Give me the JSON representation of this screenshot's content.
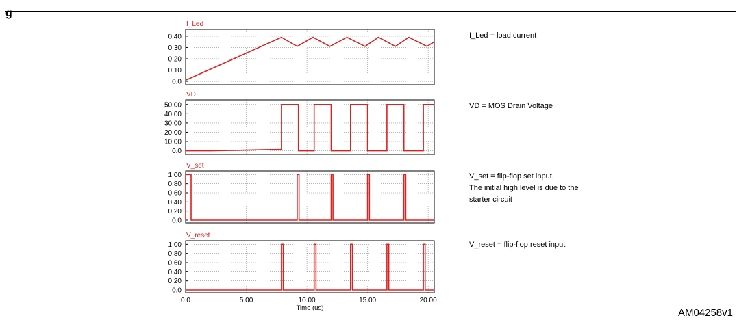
{
  "figure": {
    "corner_label": "g",
    "reference_code": "AM04258v1"
  },
  "notes": [
    {
      "lines": [
        "I_Led = load current"
      ]
    },
    {
      "lines": [
        "VD = MOS Drain Voltage"
      ]
    },
    {
      "lines": [
        "V_set = flip-flop set input,",
        "The initial high level is due to the",
        "starter circuit"
      ]
    },
    {
      "lines": [
        "V_reset = flip-flop reset input"
      ]
    }
  ],
  "colors": {
    "trace": "#dd2020",
    "label": "#dd2020",
    "axis": "#000000",
    "grid": "#888888"
  },
  "chart_data": [
    {
      "type": "line",
      "title": "I_Led",
      "x_tick_labels": [],
      "xlabel": "",
      "ylabel": "",
      "xlim": [
        0,
        20.5
      ],
      "ylim": [
        -0.03,
        0.46
      ],
      "y_ticks": [
        0.0,
        0.1,
        0.2,
        0.3,
        0.4
      ],
      "y_tick_labels": [
        "0.0",
        "0.10",
        "0.20",
        "0.30",
        "0.40"
      ],
      "x_grid": [
        5,
        10,
        15,
        20
      ],
      "grid": true,
      "series": [
        {
          "x": [
            0,
            7.9,
            9.2,
            10.5,
            11.9,
            13.3,
            14.8,
            15.9,
            17.3,
            18.4,
            19.9,
            20.5
          ],
          "y": [
            0.01,
            0.39,
            0.31,
            0.39,
            0.31,
            0.39,
            0.31,
            0.39,
            0.31,
            0.39,
            0.31,
            0.35
          ]
        }
      ]
    },
    {
      "type": "line",
      "title": "VD",
      "x_tick_labels": [],
      "xlabel": "",
      "ylabel": "",
      "xlim": [
        0,
        20.5
      ],
      "ylim": [
        -4,
        55
      ],
      "y_ticks": [
        0,
        10,
        20,
        30,
        40,
        50
      ],
      "y_tick_labels": [
        "0.0",
        "10.00",
        "20.00",
        "30.00",
        "40.00",
        "50.00"
      ],
      "x_grid": [
        5,
        10,
        15,
        20
      ],
      "grid": true,
      "series": [
        {
          "x": [
            0,
            2,
            4,
            7.9,
            7.9,
            9.3,
            9.3,
            10.6,
            10.6,
            12.0,
            12.0,
            13.6,
            13.6,
            15.0,
            15.0,
            16.6,
            16.6,
            18.0,
            18.0,
            19.6,
            19.6,
            20.5
          ],
          "y": [
            0,
            0,
            0.5,
            1.5,
            50,
            50,
            0,
            0,
            50,
            50,
            0,
            0,
            50,
            50,
            0,
            0,
            50,
            50,
            0,
            0,
            50,
            50
          ]
        }
      ]
    },
    {
      "type": "line",
      "title": "V_set",
      "x_tick_labels": [],
      "xlabel": "",
      "ylabel": "",
      "xlim": [
        0,
        20.5
      ],
      "ylim": [
        -0.06,
        1.08
      ],
      "y_ticks": [
        0.0,
        0.2,
        0.4,
        0.6,
        0.8,
        1.0
      ],
      "y_tick_labels": [
        "0.0",
        "0.20",
        "0.40",
        "0.60",
        "0.80",
        "1.00"
      ],
      "x_grid": [
        5,
        10,
        15,
        20
      ],
      "grid": true,
      "series": [
        {
          "x": [
            0,
            0,
            0.45,
            0.45,
            9.2,
            9.2,
            9.35,
            9.35,
            12.0,
            12.0,
            12.15,
            12.15,
            15.0,
            15.0,
            15.15,
            15.15,
            18.0,
            18.0,
            18.15,
            18.15,
            20.5
          ],
          "y": [
            0,
            1,
            1,
            0,
            0,
            1,
            1,
            0,
            0,
            1,
            1,
            0,
            0,
            1,
            1,
            0,
            0,
            1,
            1,
            0,
            0
          ]
        }
      ]
    },
    {
      "type": "line",
      "title": "V_reset",
      "x_tick_labels": [
        "0.0",
        "5.00",
        "10.00",
        "15.00",
        "20.00"
      ],
      "xlabel": "Time (us)",
      "ylabel": "",
      "xlim": [
        0,
        20.5
      ],
      "ylim": [
        -0.06,
        1.08
      ],
      "y_ticks": [
        0.0,
        0.2,
        0.4,
        0.6,
        0.8,
        1.0
      ],
      "y_tick_labels": [
        "0.0",
        "0.20",
        "0.40",
        "0.60",
        "0.80",
        "1.00"
      ],
      "x_grid": [
        5,
        10,
        15,
        20
      ],
      "x_ticks": [
        0,
        5,
        10,
        15,
        20
      ],
      "grid": true,
      "series": [
        {
          "x": [
            0,
            7.9,
            7.9,
            8.05,
            8.05,
            10.6,
            10.6,
            10.75,
            10.75,
            13.6,
            13.6,
            13.75,
            13.75,
            16.6,
            16.6,
            16.75,
            16.75,
            19.6,
            19.6,
            19.75,
            19.75,
            20.5
          ],
          "y": [
            0,
            0,
            1,
            1,
            0,
            0,
            1,
            1,
            0,
            0,
            1,
            1,
            0,
            0,
            1,
            1,
            0,
            0,
            1,
            1,
            0,
            0
          ]
        }
      ]
    }
  ]
}
